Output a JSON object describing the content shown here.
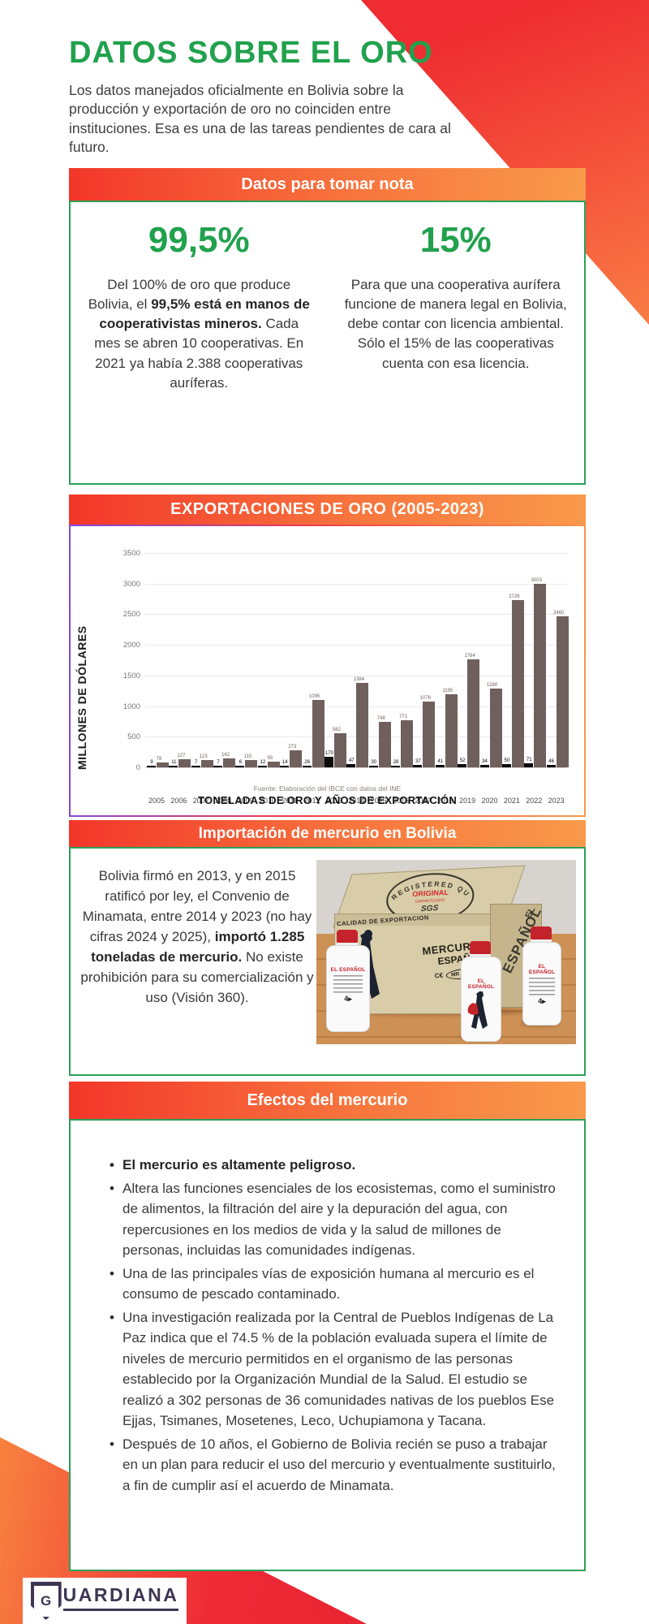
{
  "page": {
    "title": "DATOS SOBRE EL ORO",
    "intro": "Los datos manejados oficialmente en Bolivia sobre la producción y exportación de oro no coinciden entre instituciones. Esa es una de las tareas pendientes de cara al futuro."
  },
  "colors": {
    "green": "#21a14d",
    "border_green": "#2ca05a",
    "bar_gradient_start": "#f3362a",
    "bar_gradient_end": "#f99a4b",
    "chart_border_start": "#7d4ae0",
    "chart_border_end": "#f99a4b",
    "bar_brown": "#6f605d",
    "bar_black": "#0e0c0b",
    "logo_ink": "#3f3552"
  },
  "nota": {
    "bar_title": "Datos para tomar nota",
    "stats": [
      {
        "value": "99,5%",
        "pre": "Del 100% de oro que produce Bolivia, el ",
        "bold": "99,5% está en manos de cooperativistas mineros.",
        "post": " Cada mes se abren 10 cooperativas. En 2021 ya había 2.388 cooperativas auríferas."
      },
      {
        "value": "15%",
        "pre": "Para que una cooperativa aurífera funcione de manera legal en Bolivia, debe contar con licencia ambiental. Sólo el 15% de las cooperativas cuenta con esa licencia.",
        "bold": "",
        "post": ""
      }
    ]
  },
  "chart_section": {
    "bar_title": "EXPORTACIONES DE ORO (2005-2023)"
  },
  "chart_data": {
    "type": "bar",
    "title": "EXPORTACIONES DE ORO (2005-2023)",
    "categories": [
      "2005",
      "2006",
      "2007",
      "2008",
      "2009",
      "2010",
      "2011",
      "2012",
      "2013",
      "2014",
      "2015",
      "2016",
      "2017",
      "2018",
      "2019",
      "2020",
      "2021",
      "2022",
      "2023"
    ],
    "series": [
      {
        "name": "Toneladas de oro",
        "color": "#0e0c0b",
        "values": [
          9,
          11,
          7,
          7,
          6,
          12,
          14,
          26,
          170,
          47,
          30,
          28,
          37,
          41,
          52,
          34,
          50,
          71,
          46
        ]
      },
      {
        "name": "Millones de dólares",
        "color": "#6f605d",
        "values": [
          78,
          127,
          123,
          142,
          115,
          95,
          273,
          1095,
          562,
          1384,
          748,
          771,
          1076,
          1195,
          1764,
          1280,
          2726,
          3003,
          2460
        ]
      }
    ],
    "ylabel": "MILLONES DE DÓLARES",
    "xlabel": "TONELADAS DE ORO Y AÑOS DE EXPORTACIÓN",
    "source": "Fuente: Elaboración del IBCE con datos del INE",
    "yticks": [
      0,
      500,
      1000,
      1500,
      2000,
      2500,
      3000,
      3500
    ],
    "ylim": [
      0,
      3500
    ],
    "grid": true,
    "legend": "none"
  },
  "mercurio": {
    "bar_title": "Importación de mercurio en Bolivia",
    "pre": "Bolivia firmó en 2013, y en 2015 ratificó por ley, el Convenio de Minamata, entre 2014 y 2023 (no hay cifras 2024 y 2025), ",
    "bold": "importó 1.285 toneladas de mercurio.",
    "post": " No existe prohibición para su comercialización y uso (Visión 360).",
    "photo": {
      "stamp_arc": "REGISTERED QUALITY SYSTEM",
      "stamp_original": "ORIGINAL",
      "stamp_garantizado": "GARANTIZADO",
      "stamp_sgs": "SGS",
      "stamp_eqci": "EQCI",
      "strip": "CALIDAD DE EXPORTACION",
      "brand_line1": "MERCURIO",
      "brand_line2": "ESPAÑOL",
      "brand_ce": "C€",
      "brand_mr": "MR 11535-C",
      "side_el": "EL",
      "side_espanol": "ESPAÑOL",
      "bottle_label": "EL ESPAÑOL",
      "bottle_logo": "4▸"
    }
  },
  "efectos": {
    "bar_title": "Efectos del mercurio",
    "items": [
      {
        "text": "El mercurio es altamente peligroso.",
        "bold": true
      },
      {
        "text": "Altera las funciones esenciales de los ecosistemas, como el suministro de alimentos, la filtración del aire y la depuración del agua, con repercusiones en los medios de vida y la salud de millones de personas, incluidas las comunidades indígenas.",
        "bold": false
      },
      {
        "text": "Una de las principales vías de exposición humana al mercurio es el consumo de pescado contaminado.",
        "bold": false
      },
      {
        "text": "Una investigación realizada por la Central de Pueblos Indígenas de La Paz indica que el 74.5 % de la población evaluada supera el límite de niveles de mercurio permitidos en el organismo de las personas establecido por la Organización Mundial de la Salud. El estudio se realizó a 302 personas de 36 comunidades nativas de los pueblos Ese Ejjas, Tsimanes, Mosetenes, Leco, Uchupiamona y Tacana.",
        "bold": false
      },
      {
        "text": "Después de 10 años, el Gobierno de Bolivia recién se puso a trabajar en un plan para reducir el uso del mercurio y eventualmente sustituirlo, a fin de cumplir así el acuerdo de Minamata.",
        "bold": false
      }
    ]
  },
  "logo": {
    "initial": "G",
    "rest": "UARDIANA",
    "name": "GUARDIANA"
  }
}
